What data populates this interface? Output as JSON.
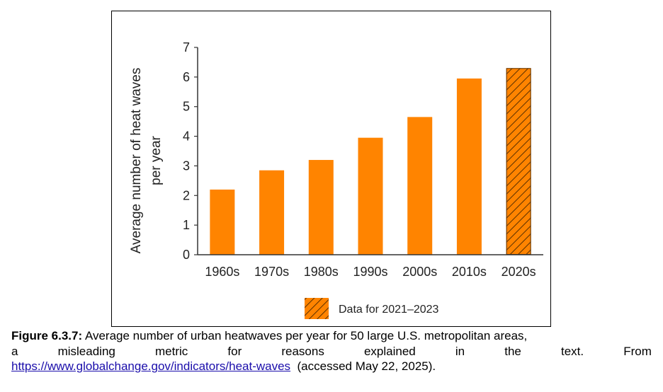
{
  "chart_data": {
    "type": "bar",
    "categories": [
      "1960s",
      "1970s",
      "1980s",
      "1990s",
      "2000s",
      "2010s",
      "2020s"
    ],
    "values": [
      2.2,
      2.85,
      3.2,
      3.95,
      4.65,
      5.95,
      6.3
    ],
    "hatched": [
      false,
      false,
      false,
      false,
      false,
      false,
      true
    ],
    "ylabel": "Average number of heat waves per year",
    "ylabel_lines": [
      "Average number of heat waves",
      "per year"
    ],
    "ylim": [
      0,
      7
    ],
    "yticks": [
      "0",
      "1",
      "2",
      "3",
      "4",
      "5",
      "6",
      "7"
    ],
    "legend": {
      "label": "Data for 2021–2023",
      "position": "bottom-center"
    },
    "bar_color": "#ff8400",
    "hatch_color": "#5a3000"
  },
  "caption": {
    "label": "Figure 6.3.7:",
    "text_line1": "Average number of urban heatwaves per year for 50 large U.S. metropolitan areas,",
    "text_line2_words": [
      "a",
      "misleading",
      "metric",
      "for",
      "reasons",
      "explained",
      "in",
      "the",
      "text.",
      "From"
    ],
    "link": "https://www.globalchange.gov/indicators/heat-waves",
    "accessed": "(accessed May 22, 2025)."
  }
}
